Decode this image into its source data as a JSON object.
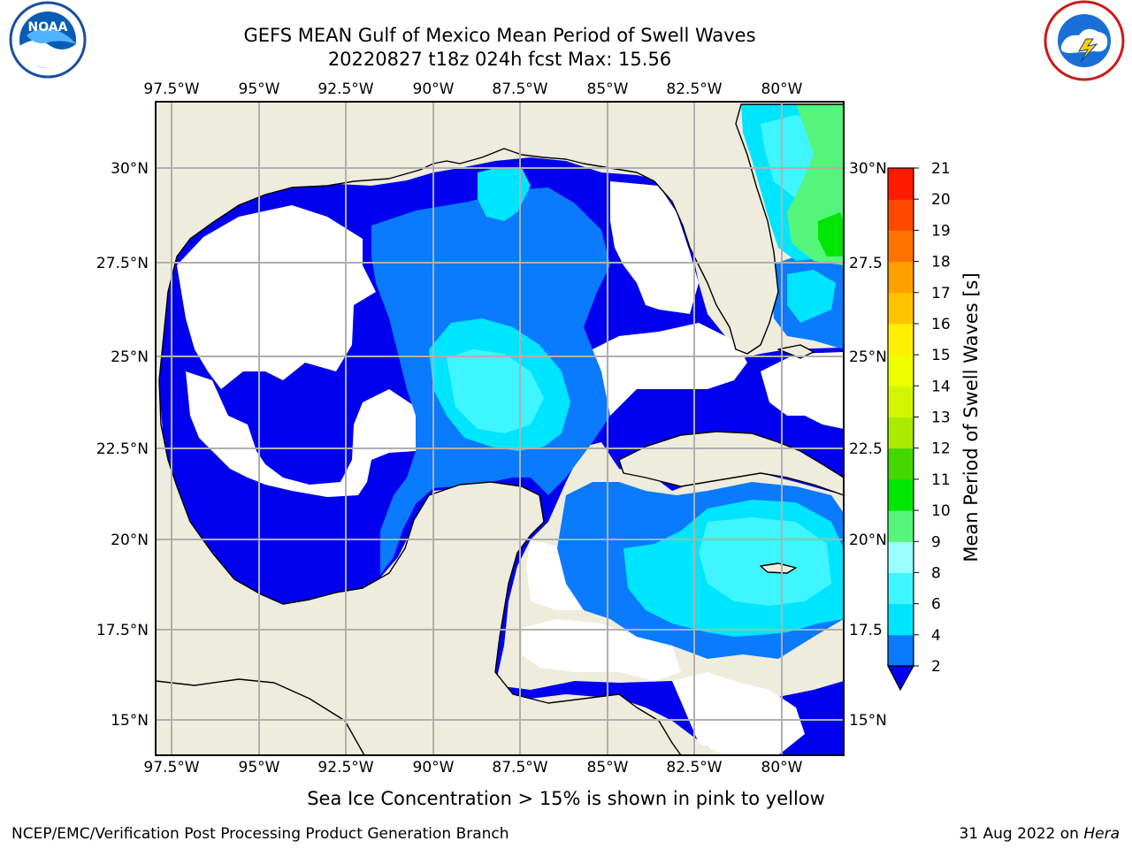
{
  "header": {
    "title_line1": "GEFS MEAN Gulf of Mexico Mean Period of Swell Waves",
    "title_line2": "20220827 t18z 024h fcst   Max: 15.56"
  },
  "map": {
    "lon_labels": [
      "97.5°W",
      "95°W",
      "92.5°W",
      "90°W",
      "87.5°W",
      "85°W",
      "82.5°W",
      "80°W"
    ],
    "lat_labels_left": [
      "30°N",
      "27.5°N",
      "25°N",
      "22.5°N",
      "20°N",
      "17.5°N",
      "15°N"
    ],
    "lat_labels_right": [
      "30°N",
      "27.5",
      "25°N",
      "22.5",
      "20°N",
      "17.5",
      "15°N"
    ],
    "land_color": "#eeecdc",
    "grid_color": "#b0b0b0",
    "extent": {
      "lon": [
        -98,
        -78.3
      ],
      "lat": [
        14.1,
        31.8
      ]
    }
  },
  "colorbar": {
    "label": "Mean Period of Swell Waves [s]",
    "ticks": [
      "21",
      "20",
      "19",
      "18",
      "17",
      "16",
      "15",
      "14",
      "13",
      "12",
      "11",
      "10",
      "9",
      "8",
      "6",
      "4",
      "2"
    ],
    "bins": [
      {
        "range": "2-4",
        "color": "#0a7aff"
      },
      {
        "range": "4-6",
        "color": "#00e5ff"
      },
      {
        "range": "6-8",
        "color": "#3ff5ff"
      },
      {
        "range": "8-9",
        "color": "#99ffff"
      },
      {
        "range": "9-10",
        "color": "#55f47a"
      },
      {
        "range": "10-11",
        "color": "#00e600"
      },
      {
        "range": "11-12",
        "color": "#44d700"
      },
      {
        "range": "12-13",
        "color": "#aaeb00"
      },
      {
        "range": "13-14",
        "color": "#d2f500"
      },
      {
        "range": "14-15",
        "color": "#f0ff00"
      },
      {
        "range": "15-16",
        "color": "#ffef00"
      },
      {
        "range": "16-17",
        "color": "#ffc400"
      },
      {
        "range": "17-18",
        "color": "#ffa000"
      },
      {
        "range": "18-19",
        "color": "#ff7300"
      },
      {
        "range": "19-20",
        "color": "#ff4800"
      },
      {
        "range": "20-21",
        "color": "#ff1a00"
      }
    ],
    "under_color": "#0000ee"
  },
  "footer": {
    "caption": "Sea Ice Concentration > 15% is shown in pink to yellow",
    "credit_left": "NCEP/EMC/Verification Post Processing Product Generation Branch",
    "credit_date": "31 Aug 2022 on ",
    "credit_host": "Hera"
  },
  "logos": {
    "left": "noaa-logo",
    "right": "nws-logo"
  }
}
